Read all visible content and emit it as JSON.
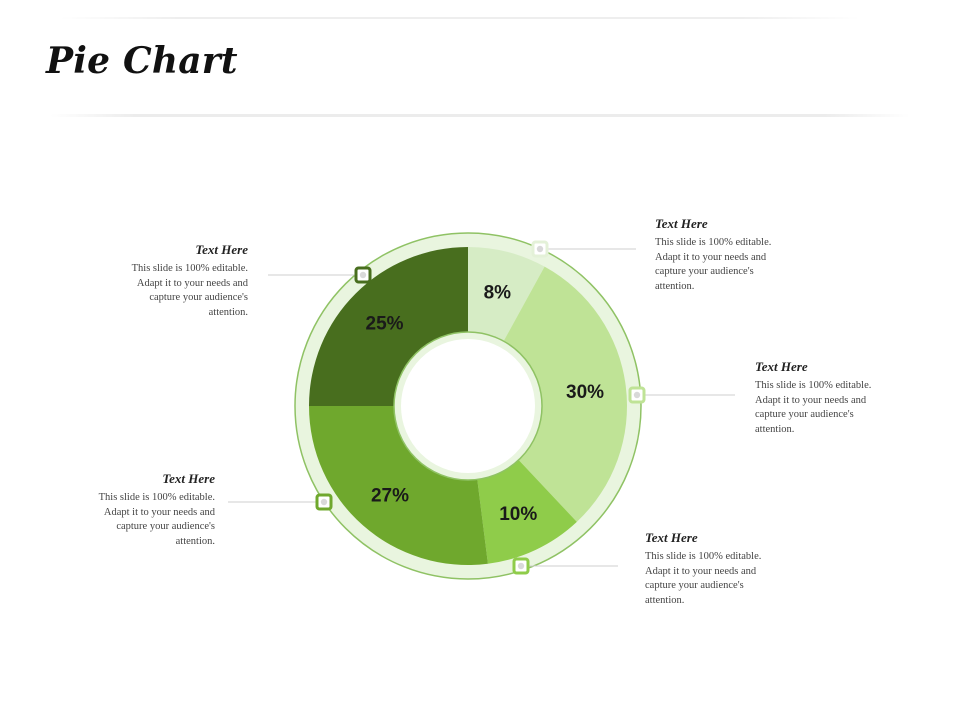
{
  "slide": {
    "title": "Pie Chart"
  },
  "callouts": [
    {
      "title": "Text Here",
      "body": "This slide is 100% editable. Adapt it to your needs and capture your audience's attention."
    },
    {
      "title": "Text Here",
      "body": "This slide is 100% editable. Adapt it to your needs and capture your audience's attention."
    },
    {
      "title": "Text Here",
      "body": "This slide is 100% editable. Adapt it to your needs and capture your audience's attention."
    },
    {
      "title": "Text Here",
      "body": "This slide is 100% editable. Adapt it to your needs and capture your audience's attention."
    },
    {
      "title": "Text Here",
      "body": "This slide is 100% editable. Adapt it to your needs and capture your audience's attention."
    }
  ],
  "chart_data": {
    "type": "pie",
    "style": "donut",
    "values": [
      8,
      30,
      10,
      27,
      25
    ],
    "labels": [
      "8%",
      "30%",
      "10%",
      "27%",
      "25%"
    ],
    "colors": [
      "#d6ecc5",
      "#bfe396",
      "#8fcc4a",
      "#6fa82d",
      "#486e1e"
    ],
    "ring_color": "#e9f5df",
    "ring_border_color": "#8fc264",
    "legend": "none"
  }
}
